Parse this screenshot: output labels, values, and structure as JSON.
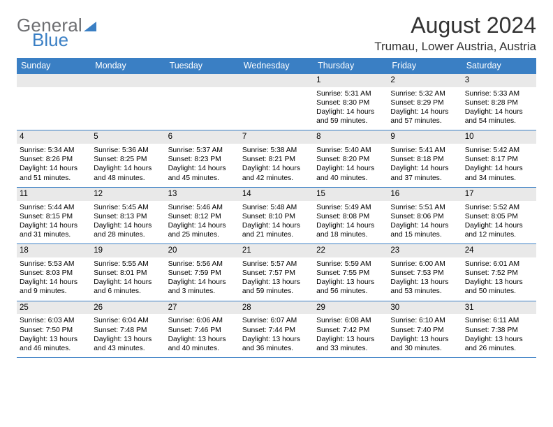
{
  "logo": {
    "part1": "General",
    "part2": "Blue"
  },
  "title": "August 2024",
  "location": "Trumau, Lower Austria, Austria",
  "day_headers": [
    "Sunday",
    "Monday",
    "Tuesday",
    "Wednesday",
    "Thursday",
    "Friday",
    "Saturday"
  ],
  "colors": {
    "header_bg": "#3a7fc4",
    "daynum_bg": "#e9e9e9",
    "border": "#3a7fc4",
    "logo_gray": "#6d6e71",
    "logo_blue": "#3a7fc4"
  },
  "weeks": [
    [
      null,
      null,
      null,
      null,
      {
        "n": "1",
        "sr": "5:31 AM",
        "ss": "8:30 PM",
        "dl": "14 hours and 59 minutes."
      },
      {
        "n": "2",
        "sr": "5:32 AM",
        "ss": "8:29 PM",
        "dl": "14 hours and 57 minutes."
      },
      {
        "n": "3",
        "sr": "5:33 AM",
        "ss": "8:28 PM",
        "dl": "14 hours and 54 minutes."
      }
    ],
    [
      {
        "n": "4",
        "sr": "5:34 AM",
        "ss": "8:26 PM",
        "dl": "14 hours and 51 minutes."
      },
      {
        "n": "5",
        "sr": "5:36 AM",
        "ss": "8:25 PM",
        "dl": "14 hours and 48 minutes."
      },
      {
        "n": "6",
        "sr": "5:37 AM",
        "ss": "8:23 PM",
        "dl": "14 hours and 45 minutes."
      },
      {
        "n": "7",
        "sr": "5:38 AM",
        "ss": "8:21 PM",
        "dl": "14 hours and 42 minutes."
      },
      {
        "n": "8",
        "sr": "5:40 AM",
        "ss": "8:20 PM",
        "dl": "14 hours and 40 minutes."
      },
      {
        "n": "9",
        "sr": "5:41 AM",
        "ss": "8:18 PM",
        "dl": "14 hours and 37 minutes."
      },
      {
        "n": "10",
        "sr": "5:42 AM",
        "ss": "8:17 PM",
        "dl": "14 hours and 34 minutes."
      }
    ],
    [
      {
        "n": "11",
        "sr": "5:44 AM",
        "ss": "8:15 PM",
        "dl": "14 hours and 31 minutes."
      },
      {
        "n": "12",
        "sr": "5:45 AM",
        "ss": "8:13 PM",
        "dl": "14 hours and 28 minutes."
      },
      {
        "n": "13",
        "sr": "5:46 AM",
        "ss": "8:12 PM",
        "dl": "14 hours and 25 minutes."
      },
      {
        "n": "14",
        "sr": "5:48 AM",
        "ss": "8:10 PM",
        "dl": "14 hours and 21 minutes."
      },
      {
        "n": "15",
        "sr": "5:49 AM",
        "ss": "8:08 PM",
        "dl": "14 hours and 18 minutes."
      },
      {
        "n": "16",
        "sr": "5:51 AM",
        "ss": "8:06 PM",
        "dl": "14 hours and 15 minutes."
      },
      {
        "n": "17",
        "sr": "5:52 AM",
        "ss": "8:05 PM",
        "dl": "14 hours and 12 minutes."
      }
    ],
    [
      {
        "n": "18",
        "sr": "5:53 AM",
        "ss": "8:03 PM",
        "dl": "14 hours and 9 minutes."
      },
      {
        "n": "19",
        "sr": "5:55 AM",
        "ss": "8:01 PM",
        "dl": "14 hours and 6 minutes."
      },
      {
        "n": "20",
        "sr": "5:56 AM",
        "ss": "7:59 PM",
        "dl": "14 hours and 3 minutes."
      },
      {
        "n": "21",
        "sr": "5:57 AM",
        "ss": "7:57 PM",
        "dl": "13 hours and 59 minutes."
      },
      {
        "n": "22",
        "sr": "5:59 AM",
        "ss": "7:55 PM",
        "dl": "13 hours and 56 minutes."
      },
      {
        "n": "23",
        "sr": "6:00 AM",
        "ss": "7:53 PM",
        "dl": "13 hours and 53 minutes."
      },
      {
        "n": "24",
        "sr": "6:01 AM",
        "ss": "7:52 PM",
        "dl": "13 hours and 50 minutes."
      }
    ],
    [
      {
        "n": "25",
        "sr": "6:03 AM",
        "ss": "7:50 PM",
        "dl": "13 hours and 46 minutes."
      },
      {
        "n": "26",
        "sr": "6:04 AM",
        "ss": "7:48 PM",
        "dl": "13 hours and 43 minutes."
      },
      {
        "n": "27",
        "sr": "6:06 AM",
        "ss": "7:46 PM",
        "dl": "13 hours and 40 minutes."
      },
      {
        "n": "28",
        "sr": "6:07 AM",
        "ss": "7:44 PM",
        "dl": "13 hours and 36 minutes."
      },
      {
        "n": "29",
        "sr": "6:08 AM",
        "ss": "7:42 PM",
        "dl": "13 hours and 33 minutes."
      },
      {
        "n": "30",
        "sr": "6:10 AM",
        "ss": "7:40 PM",
        "dl": "13 hours and 30 minutes."
      },
      {
        "n": "31",
        "sr": "6:11 AM",
        "ss": "7:38 PM",
        "dl": "13 hours and 26 minutes."
      }
    ]
  ],
  "labels": {
    "sunrise": "Sunrise: ",
    "sunset": "Sunset: ",
    "daylight": "Daylight: "
  }
}
